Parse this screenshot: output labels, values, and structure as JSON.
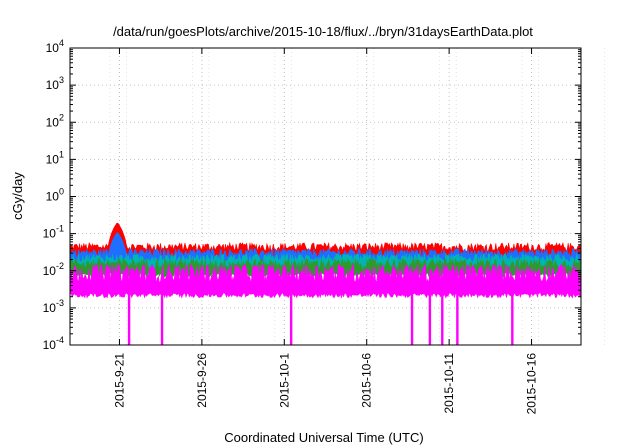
{
  "chart_data": {
    "type": "line",
    "title": "/data/run/goesPlots/archive/2015-10-18/flux/../bryn/31daysEarthData.plot",
    "xlabel": "Coordinated Universal Time (UTC)",
    "ylabel": "cGy/day",
    "y_scale": "log",
    "ylim": [
      0.0001,
      10000
    ],
    "xlim": [
      "2015-09-18",
      "2015-10-19"
    ],
    "grid": true,
    "y_ticks": [
      {
        "value": 0.0001,
        "base": "10",
        "exp": "-4"
      },
      {
        "value": 0.001,
        "base": "10",
        "exp": "-3"
      },
      {
        "value": 0.01,
        "base": "10",
        "exp": "-2"
      },
      {
        "value": 0.1,
        "base": "10",
        "exp": "-1"
      },
      {
        "value": 1,
        "base": "10",
        "exp": "0"
      },
      {
        "value": 10,
        "base": "10",
        "exp": "1"
      },
      {
        "value": 100,
        "base": "10",
        "exp": "2"
      },
      {
        "value": 1000,
        "base": "10",
        "exp": "3"
      },
      {
        "value": 10000,
        "base": "10",
        "exp": "4"
      }
    ],
    "x_ticks": [
      "2015-9-21",
      "2015-9-26",
      "2015-10-1",
      "2015-10-6",
      "2015-10-11",
      "2015-10-16"
    ],
    "x_tick_dates": [
      "2015-09-21",
      "2015-09-26",
      "2015-10-01",
      "2015-10-06",
      "2015-10-11",
      "2015-10-16"
    ],
    "series": [
      {
        "color": "#ff0000",
        "typical": 0.04,
        "spread": 0.012,
        "peak": {
          "date": "2015-09-20T21:00",
          "value": 0.2
        }
      },
      {
        "color": "#1e6eff",
        "typical": 0.028,
        "spread": 0.008,
        "peak": {
          "date": "2015-09-20T21:00",
          "value": 0.11
        }
      },
      {
        "color": "#00b4b4",
        "typical": 0.02,
        "spread": 0.006
      },
      {
        "color": "#2e9a2e",
        "typical": 0.014,
        "spread": 0.005
      },
      {
        "color": "#ff00ff",
        "typical": 0.0045,
        "spread_low": 0.0022,
        "spread_high": 0.015,
        "dropouts": [
          "2015-09-21T14:00",
          "2015-09-23T14:00",
          "2015-10-01T10:00",
          "2015-10-08T18:00",
          "2015-10-09T20:00",
          "2015-10-10T14:00",
          "2015-10-11T12:00",
          "2015-10-14T20:00"
        ]
      }
    ]
  }
}
